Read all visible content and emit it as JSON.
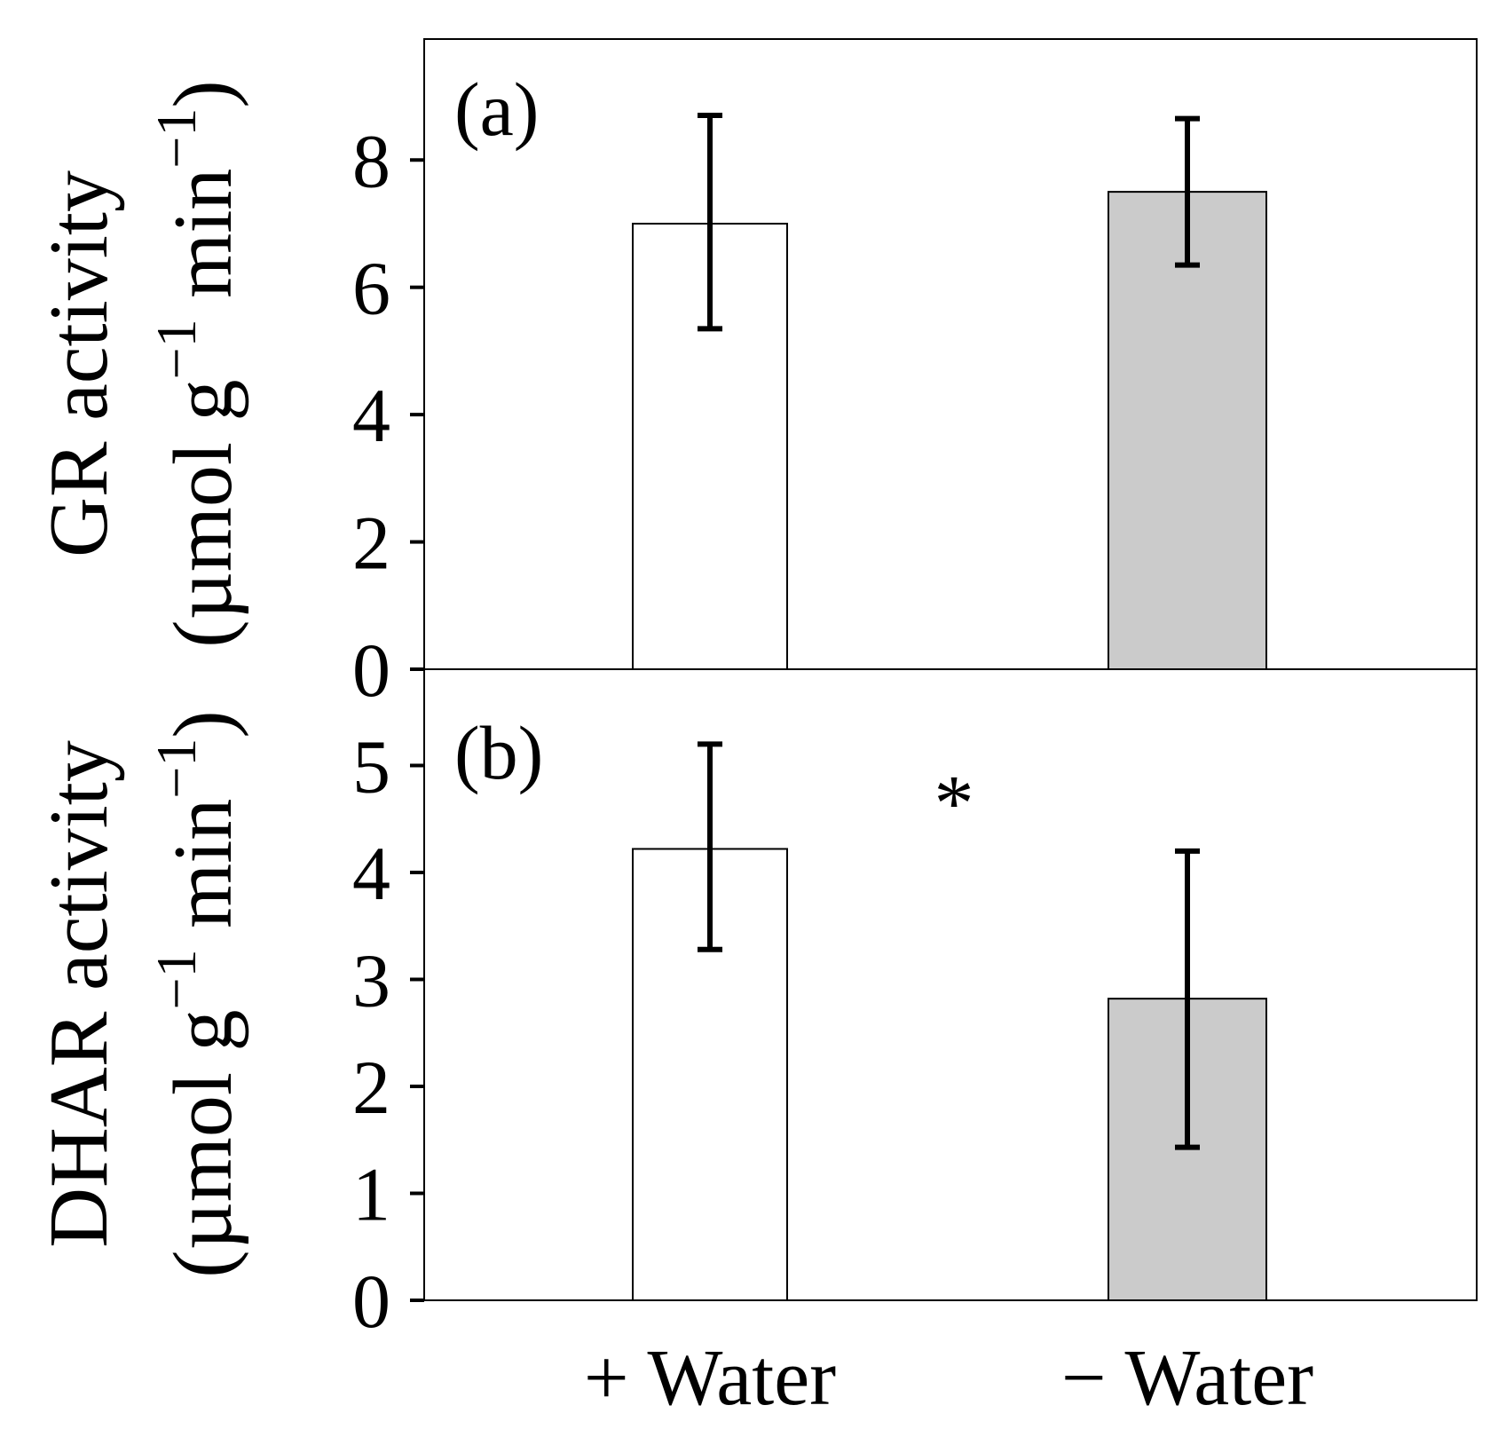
{
  "chart_data": [
    {
      "type": "bar",
      "panel_label": "(a)",
      "ylabel_line1": "GR activity",
      "ylabel_line2": {
        "open": "(µmol g",
        "exp1": "−1",
        "mid": " min",
        "exp2": "−1",
        "close": ")"
      },
      "categories": [
        "+ Water",
        "− Water"
      ],
      "values": [
        7.0,
        7.5
      ],
      "errors_low": [
        5.35,
        6.35
      ],
      "errors_high": [
        8.7,
        8.65
      ],
      "bar_colors": [
        "#ffffff",
        "#cbcbcb"
      ],
      "ylim": [
        0,
        9.9
      ],
      "yticks": [
        0,
        2,
        4,
        6,
        8
      ],
      "annotation": ""
    },
    {
      "type": "bar",
      "panel_label": "(b)",
      "ylabel_line1": "DHAR activity",
      "ylabel_line2": {
        "open": "(µmol g",
        "exp1": "−1",
        "mid": " min",
        "exp2": "−1",
        "close": ")"
      },
      "categories": [
        "+ Water",
        "− Water"
      ],
      "values": [
        4.22,
        2.82
      ],
      "errors_low": [
        3.28,
        1.43
      ],
      "errors_high": [
        5.2,
        4.2
      ],
      "bar_colors": [
        "#ffffff",
        "#cbcbcb"
      ],
      "ylim": [
        0,
        5.9
      ],
      "yticks": [
        0,
        1,
        2,
        3,
        4,
        5
      ],
      "annotation": "*"
    }
  ],
  "x_categories": [
    "+ Water",
    "− Water"
  ]
}
